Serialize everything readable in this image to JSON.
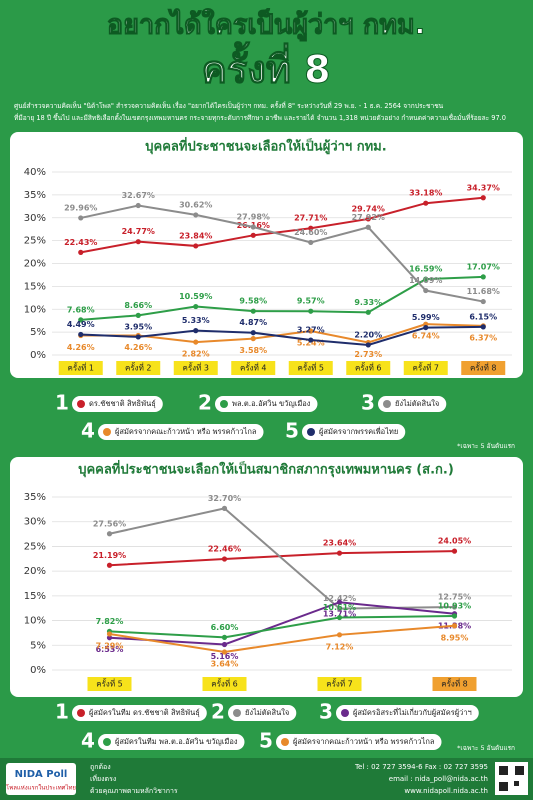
{
  "header": {
    "title": "อยากได้ใครเป็นผู้ว่าฯ กทม.",
    "subtitle": "ครั้งที่ 8",
    "description": [
      "ศูนย์สำรวจความคิดเห็น \"นิด้าโพล\" สำรวจความคิดเห็น เรื่อง \"อยากได้ใครเป็นผู้ว่าฯ กทม. ครั้งที่ 8\" ระหว่างวันที่ 29 พ.ย. - 1 ธ.ค. 2564 จากประชาชน",
      "ที่มีอายุ 18 ปี ขึ้นไป และมีสิทธิเลือกตั้งในเขตกรุงเทพมหานคร กระจายทุกระดับการศึกษา อาชีพ และรายได้ จำนวน 1,318 หน่วยตัวอย่าง กำหนดค่าความเชื่อมั่นที่ร้อยละ 97.0"
    ]
  },
  "chart_data": [
    {
      "type": "line",
      "title": "บุคคลที่ประชาชนจะเลือกให้เป็นผู้ว่าฯ กทม.",
      "categories": [
        "ครั้งที่ 1",
        "ครั้งที่ 2",
        "ครั้งที่ 3",
        "ครั้งที่ 4",
        "ครั้งที่ 5",
        "ครั้งที่ 6",
        "ครั้งที่ 7",
        "ครั้งที่ 8"
      ],
      "ylim": [
        0,
        40
      ],
      "yticks": [
        {
          "value": 0,
          "label": "0%"
        },
        {
          "value": 5,
          "label": "5%"
        },
        {
          "value": 10,
          "label": "10%"
        },
        {
          "value": 15,
          "label": "15%"
        },
        {
          "value": 20,
          "label": "20%"
        },
        {
          "value": 25,
          "label": "25%"
        },
        {
          "value": 30,
          "label": "30%"
        },
        {
          "value": 35,
          "label": "35%"
        },
        {
          "value": 40,
          "label": "40%"
        }
      ],
      "grid": true,
      "legend_numbers": [
        "1",
        "2",
        "3",
        "4",
        "5"
      ],
      "note": "*เฉพาะ 5 อันดับแรก",
      "series": [
        {
          "name": "ดร.ชัชชาติ สิทธิพันธุ์",
          "color": "#c8202a",
          "values": [
            22.43,
            24.77,
            23.84,
            26.16,
            27.71,
            29.74,
            33.18,
            34.37
          ],
          "value_labels": [
            "22.43%",
            "24.77%",
            "23.84%",
            "26.16%",
            "27.71%",
            "29.74%",
            "33.18%",
            "34.37%"
          ]
        },
        {
          "name": "พล.ต.อ.อัศวิน ขวัญเมือง",
          "color": "#2e9e48",
          "values": [
            7.68,
            8.66,
            10.59,
            9.58,
            9.57,
            9.33,
            16.59,
            17.07
          ],
          "value_labels": [
            "7.68%",
            "8.66%",
            "10.59%",
            "9.58%",
            "9.57%",
            "9.33%",
            "16.59%",
            "17.07%"
          ]
        },
        {
          "name": "ยังไม่ตัดสินใจ",
          "color": "#8c8c8c",
          "values": [
            29.96,
            32.67,
            30.62,
            27.98,
            24.6,
            27.92,
            14.09,
            11.68
          ],
          "value_labels": [
            "29.96%",
            "32.67%",
            "30.62%",
            "27.98%",
            "24.60%",
            "27.92%",
            "14.09%",
            "11.68%"
          ]
        },
        {
          "name": "ผู้สมัครจากคณะก้าวหน้า หรือ พรรคก้าวไกล",
          "color": "#e8892b",
          "values": [
            4.26,
            4.26,
            2.82,
            3.58,
            5.24,
            2.73,
            6.74,
            6.37
          ],
          "value_labels": [
            "4.26%",
            "4.26%",
            "2.82%",
            "3.58%",
            "5.24%",
            "2.73%",
            "6.74%",
            "6.37%"
          ]
        },
        {
          "name": "ผู้สมัครจากพรรคเพื่อไทย",
          "color": "#1f2d6b",
          "values": [
            4.49,
            3.95,
            5.33,
            4.87,
            3.27,
            2.2,
            5.99,
            6.15
          ],
          "value_labels": [
            "4.49%",
            "3.95%",
            "5.33%",
            "4.87%",
            "3.27%",
            "2.20%",
            "5.99%",
            "6.15%"
          ]
        }
      ]
    },
    {
      "type": "line",
      "title": "บุคคลที่ประชาชนจะเลือกให้เป็นสมาชิกสภากรุงเทพมหานคร (ส.ก.)",
      "categories": [
        "ครั้งที่ 5",
        "ครั้งที่ 6",
        "ครั้งที่ 7",
        "ครั้งที่ 8"
      ],
      "ylim": [
        0,
        35
      ],
      "yticks": [
        {
          "value": 0,
          "label": "0%"
        },
        {
          "value": 5,
          "label": "5%"
        },
        {
          "value": 10,
          "label": "10%"
        },
        {
          "value": 15,
          "label": "15%"
        },
        {
          "value": 20,
          "label": "20%"
        },
        {
          "value": 25,
          "label": "25%"
        },
        {
          "value": 30,
          "label": "30%"
        },
        {
          "value": 35,
          "label": "35%"
        }
      ],
      "grid": true,
      "legend_numbers": [
        "1",
        "2",
        "3",
        "4",
        "5"
      ],
      "note": "*เฉพาะ 5 อันดับแรก",
      "series": [
        {
          "name": "ผู้สมัครในทีม ดร.ชัชชาติ สิทธิพันธุ์",
          "color": "#c8202a",
          "values": [
            21.19,
            22.46,
            23.64,
            24.05
          ],
          "value_labels": [
            "21.19%",
            "22.46%",
            "23.64%",
            "24.05%"
          ]
        },
        {
          "name": "ยังไม่ตัดสินใจ",
          "color": "#8c8c8c",
          "values": [
            27.56,
            32.7,
            12.42,
            12.75
          ],
          "value_labels": [
            "27.56%",
            "32.70%",
            "12.42%",
            "12.75%"
          ]
        },
        {
          "name": "ผู้สมัครอิสระที่ไม่เกี่ยวกับผู้สมัครผู้ว่าฯ",
          "color": "#6a2a8c",
          "values": [
            6.53,
            5.16,
            13.71,
            11.38
          ],
          "value_labels": [
            "6.53%",
            "5.16%",
            "13.71%",
            "11.38%"
          ]
        },
        {
          "name": "ผู้สมัครในทีม พล.ต.อ.อัศวิน ขวัญเมือง",
          "color": "#2e9e48",
          "values": [
            7.82,
            6.6,
            10.61,
            10.93
          ],
          "value_labels": [
            "7.82%",
            "6.60%",
            "10.61%",
            "10.93%"
          ]
        },
        {
          "name": "ผู้สมัครจากคณะก้าวหน้า หรือ พรรคก้าวไกล",
          "color": "#e8892b",
          "values": [
            7.29,
            3.64,
            7.12,
            8.95
          ],
          "value_labels": [
            "7.29%",
            "3.64%",
            "7.12%",
            "8.95%"
          ]
        }
      ]
    }
  ],
  "footer": {
    "brand": "NIDA Poll",
    "tagline": "โพลแห่งแรกในประเทศไทย",
    "values": [
      "ถูกต้อง",
      "เที่ยงตรง",
      "ด้วยคุณภาพตามหลักวิชาการ"
    ],
    "contact": [
      "Tel : 02 727 3594-6 Fax : 02 727 3595",
      "email : nida_poll@nida.ac.th",
      "www.nidapoll.nida.ac.th"
    ]
  }
}
